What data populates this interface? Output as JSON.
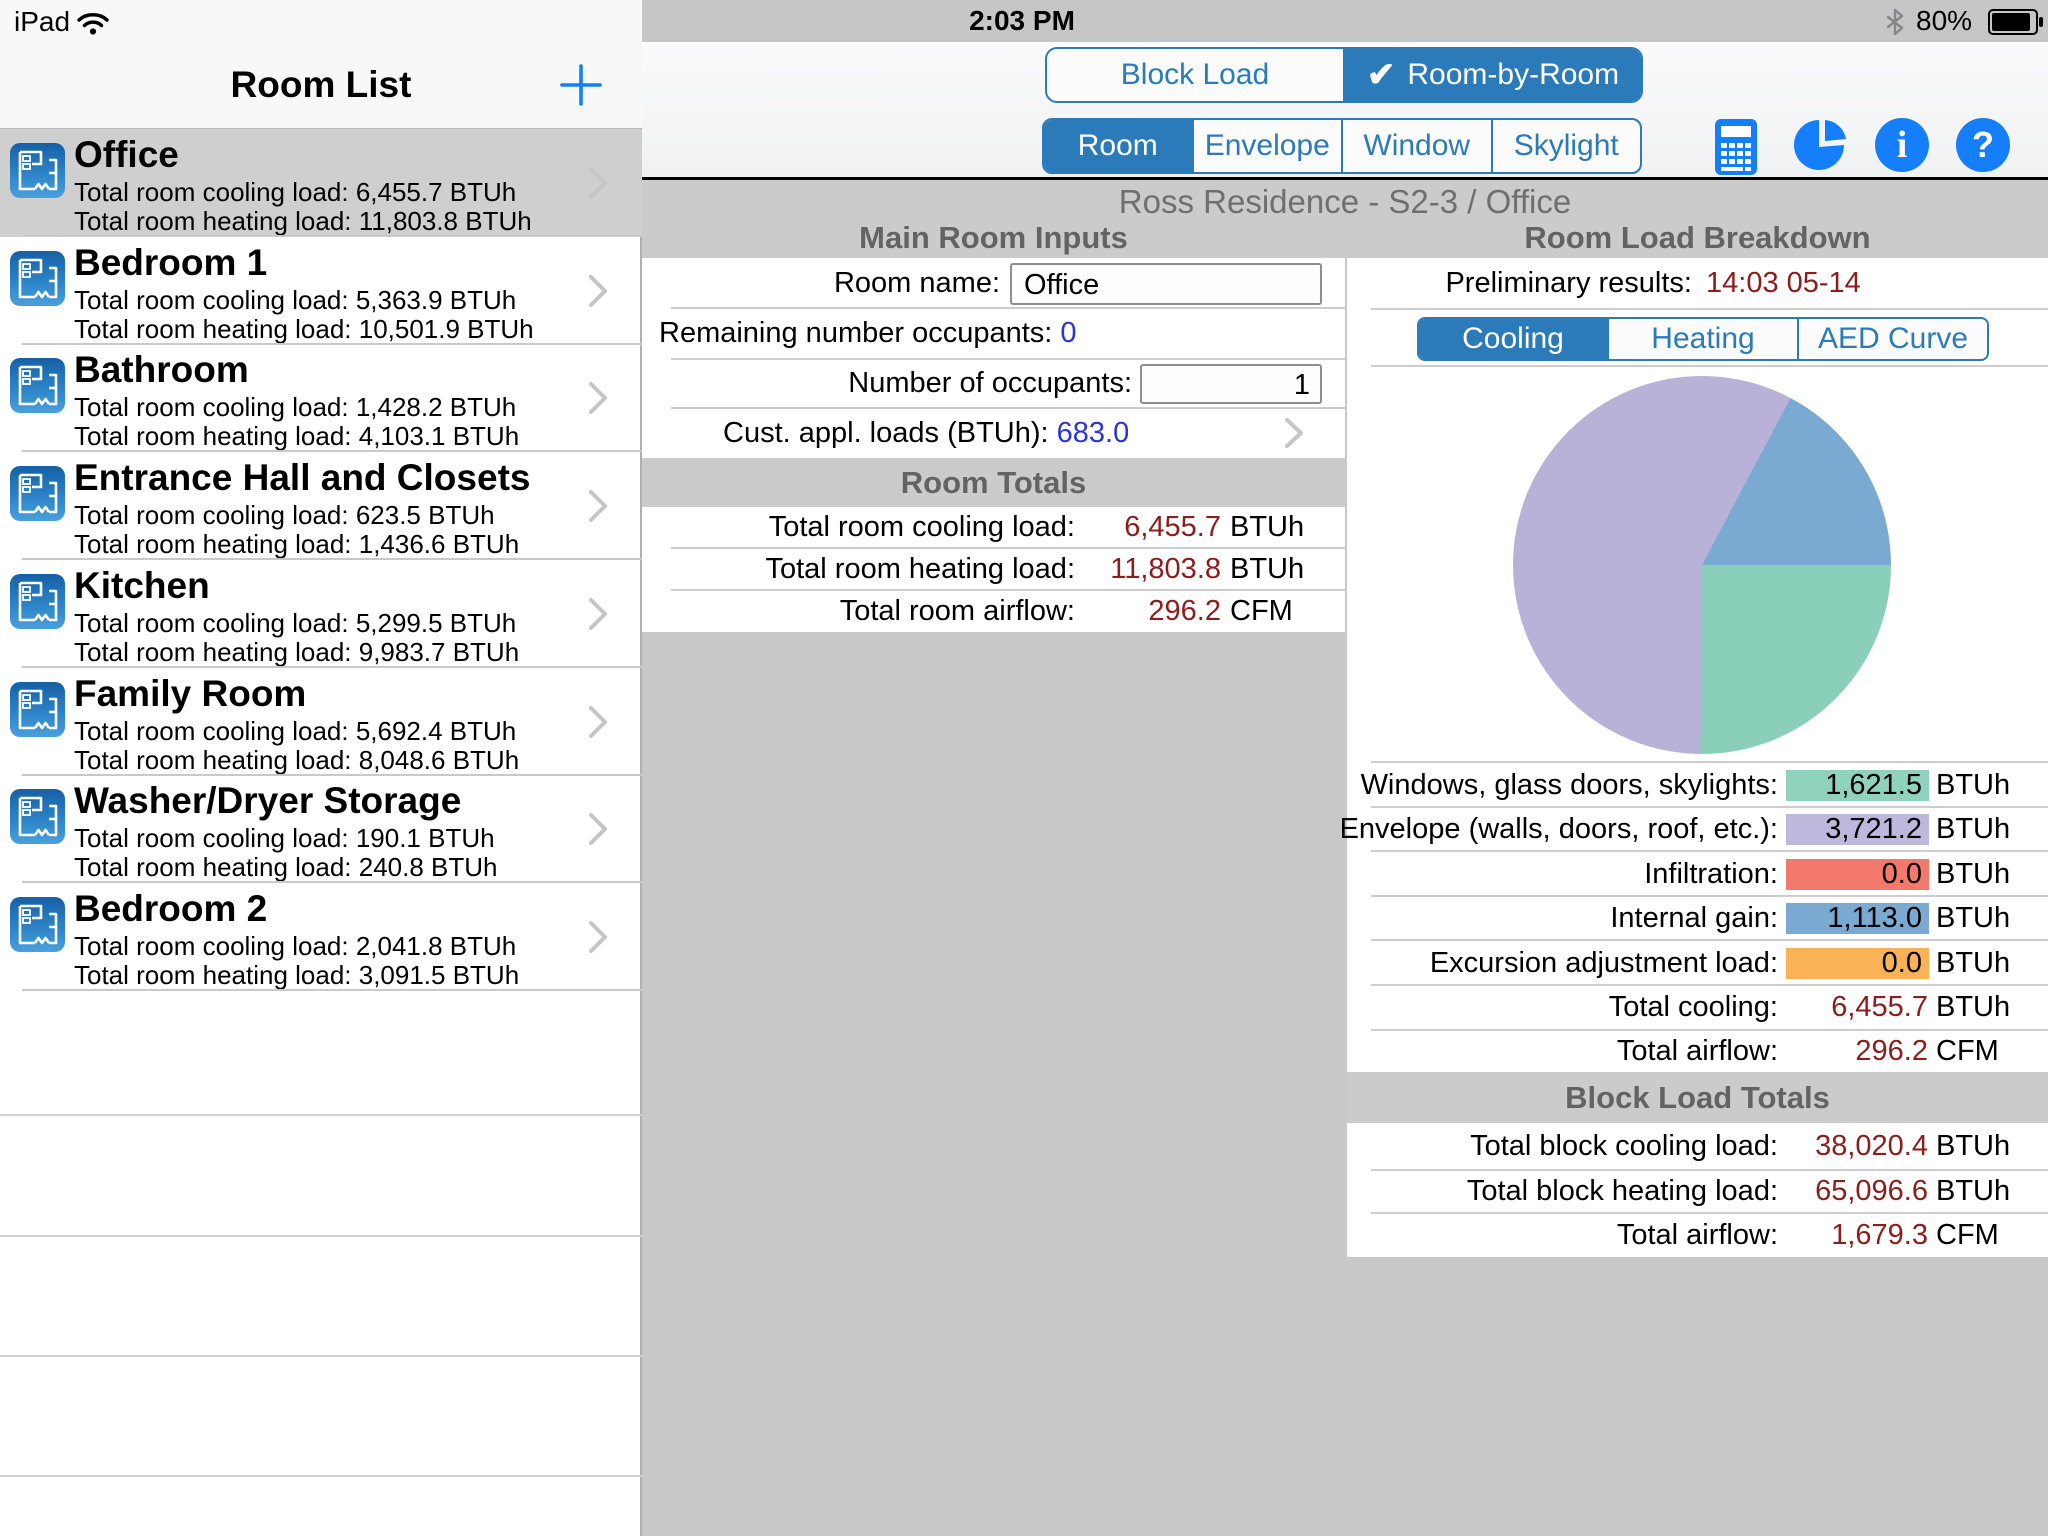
{
  "status_bar": {
    "carrier": "iPad",
    "time": "2:03 PM",
    "battery_percent": "80%"
  },
  "sidebar": {
    "title": "Room List",
    "rooms": [
      {
        "name": "Office",
        "line1": "Total room cooling load: 6,455.7 BTUh",
        "line2": "Total room heating load: 11,803.8 BTUh",
        "selected": true
      },
      {
        "name": "Bedroom 1",
        "line1": "Total room cooling load: 5,363.9 BTUh",
        "line2": "Total room heating load: 10,501.9 BTUh",
        "selected": false
      },
      {
        "name": "Bathroom",
        "line1": "Total room cooling load: 1,428.2 BTUh",
        "line2": "Total room heating load: 4,103.1 BTUh",
        "selected": false
      },
      {
        "name": "Entrance Hall and Closets",
        "line1": "Total room cooling load: 623.5 BTUh",
        "line2": "Total room heating load: 1,436.6 BTUh",
        "selected": false
      },
      {
        "name": "Kitchen",
        "line1": "Total room cooling load: 5,299.5 BTUh",
        "line2": "Total room heating load: 9,983.7 BTUh",
        "selected": false
      },
      {
        "name": "Family Room",
        "line1": "Total room cooling load: 5,692.4 BTUh",
        "line2": "Total room heating load: 8,048.6 BTUh",
        "selected": false
      },
      {
        "name": "Washer/Dryer Storage",
        "line1": "Total room cooling load: 190.1 BTUh",
        "line2": "Total room heating load: 240.8 BTUh",
        "selected": false
      },
      {
        "name": "Bedroom 2",
        "line1": "Total room cooling load: 2,041.8 BTUh",
        "line2": "Total room heating load: 3,091.5 BTUh",
        "selected": false
      }
    ]
  },
  "toolbar": {
    "mode_segments": [
      {
        "label": "Block Load",
        "selected": false
      },
      {
        "label": "Room-by-Room",
        "selected": true,
        "check": "✔"
      }
    ],
    "tab_segments": [
      {
        "label": "Room",
        "selected": true
      },
      {
        "label": "Envelope",
        "selected": false
      },
      {
        "label": "Window",
        "selected": false
      },
      {
        "label": "Skylight",
        "selected": false
      }
    ]
  },
  "main": {
    "title": "Ross Residence - S2-3 / Office",
    "left": {
      "header": "Main Room Inputs",
      "room_name_label": "Room name:",
      "room_name_value": "Office",
      "remaining_label": "Remaining number occupants:",
      "remaining_value": "0",
      "occupants_label": "Number of occupants:",
      "occupants_value": "1",
      "cust_label": "Cust. appl. loads (BTUh):",
      "cust_value": "683.0",
      "totals_header": "Room Totals",
      "totals": [
        {
          "label": "Total room cooling load:",
          "value": "6,455.7",
          "unit": "BTUh"
        },
        {
          "label": "Total room heating load:",
          "value": "11,803.8",
          "unit": "BTUh"
        },
        {
          "label": "Total room airflow:",
          "value": "296.2",
          "unit": "CFM"
        }
      ]
    },
    "right": {
      "header": "Room Load Breakdown",
      "prelim_label": "Preliminary results:",
      "prelim_value": "14:03 05-14",
      "chart_tabs": [
        {
          "label": "Cooling",
          "selected": true
        },
        {
          "label": "Heating",
          "selected": false
        },
        {
          "label": "AED Curve",
          "selected": false
        }
      ],
      "breakdown": [
        {
          "label": "Windows, glass doors, skylights:",
          "value": "1,621.5",
          "unit": "BTUh",
          "color": "#8fd2bd"
        },
        {
          "label": "Envelope (walls, doors, roof, etc.):",
          "value": "3,721.2",
          "unit": "BTUh",
          "color": "#bdb8dc"
        },
        {
          "label": "Infiltration:",
          "value": "0.0",
          "unit": "BTUh",
          "color": "#f4796d"
        },
        {
          "label": "Internal gain:",
          "value": "1,113.0",
          "unit": "BTUh",
          "color": "#7aaad2"
        },
        {
          "label": "Excursion adjustment load:",
          "value": "0.0",
          "unit": "BTUh",
          "color": "#f9b255"
        }
      ],
      "totals": [
        {
          "label": "Total cooling:",
          "value": "6,455.7",
          "unit": "BTUh"
        },
        {
          "label": "Total airflow:",
          "value": "296.2",
          "unit": "CFM"
        }
      ],
      "block_header": "Block Load Totals",
      "block_totals": [
        {
          "label": "Total block cooling load:",
          "value": "38,020.4",
          "unit": "BTUh"
        },
        {
          "label": "Total block heating load:",
          "value": "65,096.6",
          "unit": "BTUh"
        },
        {
          "label": "Total airflow:",
          "value": "1,679.3",
          "unit": "CFM"
        }
      ]
    }
  },
  "chart_data": {
    "type": "pie",
    "title": "Room Load Breakdown - Cooling",
    "units": "BTUh",
    "start_angle": "east",
    "direction": "clockwise",
    "slices": [
      {
        "label": "Windows, glass doors, skylights",
        "value": 1621.5,
        "color": "#89cfba"
      },
      {
        "label": "Envelope (walls, doors, roof, etc.)",
        "value": 3721.2,
        "color": "#b8b2d8"
      },
      {
        "label": "Infiltration",
        "value": 0.0,
        "color": "#f4796d"
      },
      {
        "label": "Internal gain",
        "value": 1113.0,
        "color": "#7aaad2"
      },
      {
        "label": "Excursion adjustment load",
        "value": 0.0,
        "color": "#f9b255"
      }
    ],
    "total": 6455.7
  },
  "colors": {
    "accent_blue": "#2b7ab9",
    "icon_blue": "#157efb",
    "maroon": "#8c1d1d",
    "link_blue": "#2a35d2"
  }
}
